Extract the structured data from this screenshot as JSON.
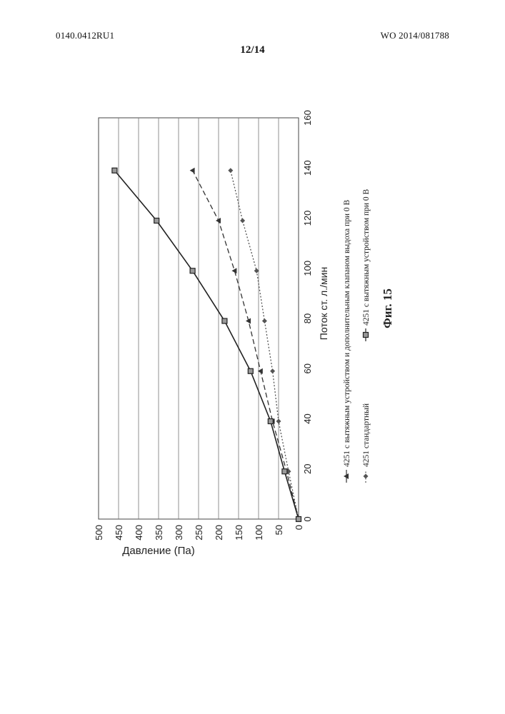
{
  "header": {
    "left_id": "0140.0412RU1",
    "right_id": "WO 2014/081788",
    "page": "12/14"
  },
  "figure_caption": "Фиг. 15",
  "chart_data": {
    "type": "line",
    "xlabel": "Поток ст. л./мин",
    "ylabel": "Давление (Па)",
    "xlim": [
      0,
      160
    ],
    "ylim": [
      0,
      500
    ],
    "xticks": [
      0,
      20,
      40,
      60,
      80,
      100,
      120,
      140,
      160
    ],
    "yticks": [
      0,
      50,
      100,
      150,
      200,
      250,
      300,
      350,
      400,
      450,
      500
    ],
    "grid": true,
    "orientation": "rotated 90° counter-clockwise on the page",
    "legend_position": "below the chart",
    "series": [
      {
        "name": "4251 с вытяжным устройством и дополнительным клапаном выдоха при 0 В",
        "style": "dashed",
        "marker": "triangle",
        "color": "#333333",
        "x": [
          0,
          19,
          39,
          59,
          79,
          99,
          119,
          139
        ],
        "y": [
          0,
          30,
          65,
          95,
          125,
          160,
          200,
          265
        ]
      },
      {
        "name": "4251 стандартный",
        "style": "dotted",
        "marker": "diamond",
        "color": "#555555",
        "x": [
          0,
          19,
          39,
          59,
          79,
          99,
          119,
          139
        ],
        "y": [
          0,
          25,
          50,
          65,
          85,
          105,
          140,
          170
        ]
      },
      {
        "name": "4251 с вытяжным устройством при 0 В",
        "style": "solid",
        "marker": "square",
        "color": "#222222",
        "x": [
          0,
          19,
          39,
          59,
          79,
          99,
          119,
          139
        ],
        "y": [
          0,
          35,
          70,
          120,
          185,
          265,
          355,
          460
        ]
      }
    ]
  }
}
